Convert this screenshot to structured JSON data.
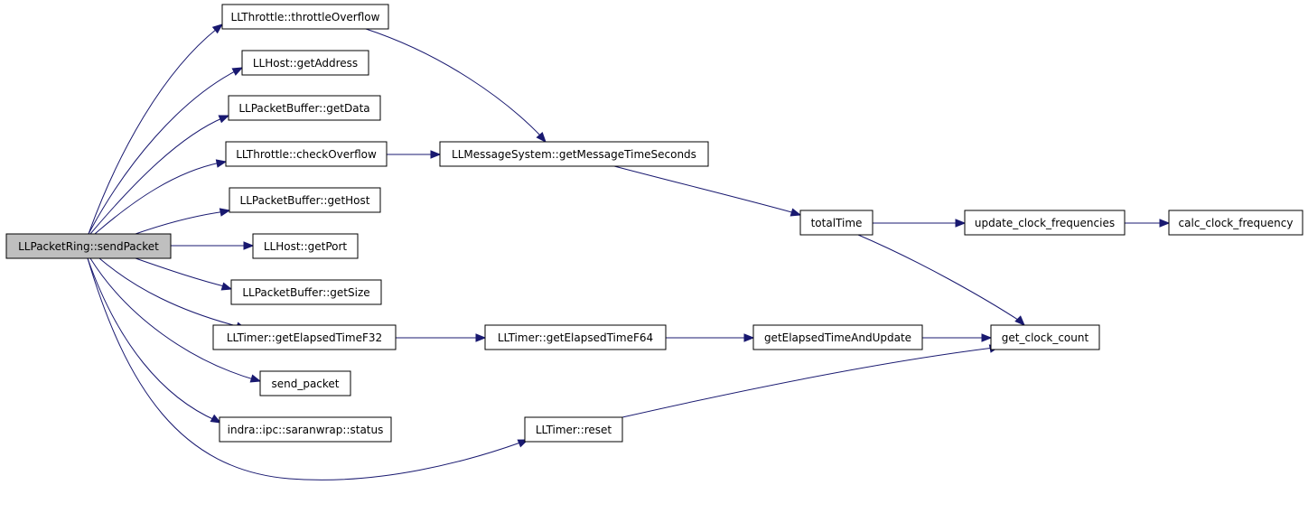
{
  "diagram": {
    "colors": {
      "edge": "#191970",
      "root_fill": "#bfbfbf",
      "node_fill": "#ffffff",
      "border": "#000000"
    },
    "nodes": [
      {
        "id": "sendPacket",
        "label": "LLPacketRing::sendPacket",
        "root": true
      },
      {
        "id": "throttleOverflow",
        "label": "LLThrottle::throttleOverflow"
      },
      {
        "id": "getAddress",
        "label": "LLHost::getAddress"
      },
      {
        "id": "getData",
        "label": "LLPacketBuffer::getData"
      },
      {
        "id": "checkOverflow",
        "label": "LLThrottle::checkOverflow"
      },
      {
        "id": "getHost",
        "label": "LLPacketBuffer::getHost"
      },
      {
        "id": "getPort",
        "label": "LLHost::getPort"
      },
      {
        "id": "getSize",
        "label": "LLPacketBuffer::getSize"
      },
      {
        "id": "getElapsedTimeF32",
        "label": "LLTimer::getElapsedTimeF32"
      },
      {
        "id": "send_packet",
        "label": "send_packet"
      },
      {
        "id": "status",
        "label": "indra::ipc::saranwrap::status"
      },
      {
        "id": "getMessageTimeSeconds",
        "label": "LLMessageSystem::getMessageTimeSeconds"
      },
      {
        "id": "totalTime",
        "label": "totalTime"
      },
      {
        "id": "update_clock_frequencies",
        "label": "update_clock_frequencies"
      },
      {
        "id": "calc_clock_frequency",
        "label": "calc_clock_frequency"
      },
      {
        "id": "getElapsedTimeF64",
        "label": "LLTimer::getElapsedTimeF64"
      },
      {
        "id": "getElapsedTimeAndUpdate",
        "label": "getElapsedTimeAndUpdate"
      },
      {
        "id": "get_clock_count",
        "label": "get_clock_count"
      },
      {
        "id": "reset",
        "label": "LLTimer::reset"
      }
    ],
    "edges": [
      {
        "from": "sendPacket",
        "to": "throttleOverflow"
      },
      {
        "from": "sendPacket",
        "to": "getAddress"
      },
      {
        "from": "sendPacket",
        "to": "getData"
      },
      {
        "from": "sendPacket",
        "to": "checkOverflow"
      },
      {
        "from": "sendPacket",
        "to": "getHost"
      },
      {
        "from": "sendPacket",
        "to": "getPort"
      },
      {
        "from": "sendPacket",
        "to": "getSize"
      },
      {
        "from": "sendPacket",
        "to": "getElapsedTimeF32"
      },
      {
        "from": "sendPacket",
        "to": "send_packet"
      },
      {
        "from": "sendPacket",
        "to": "status"
      },
      {
        "from": "sendPacket",
        "to": "reset"
      },
      {
        "from": "throttleOverflow",
        "to": "getMessageTimeSeconds"
      },
      {
        "from": "checkOverflow",
        "to": "getMessageTimeSeconds"
      },
      {
        "from": "getMessageTimeSeconds",
        "to": "totalTime"
      },
      {
        "from": "totalTime",
        "to": "update_clock_frequencies"
      },
      {
        "from": "totalTime",
        "to": "get_clock_count"
      },
      {
        "from": "update_clock_frequencies",
        "to": "calc_clock_frequency"
      },
      {
        "from": "getElapsedTimeF32",
        "to": "getElapsedTimeF64"
      },
      {
        "from": "getElapsedTimeF64",
        "to": "getElapsedTimeAndUpdate"
      },
      {
        "from": "getElapsedTimeAndUpdate",
        "to": "get_clock_count"
      },
      {
        "from": "reset",
        "to": "get_clock_count"
      }
    ]
  }
}
